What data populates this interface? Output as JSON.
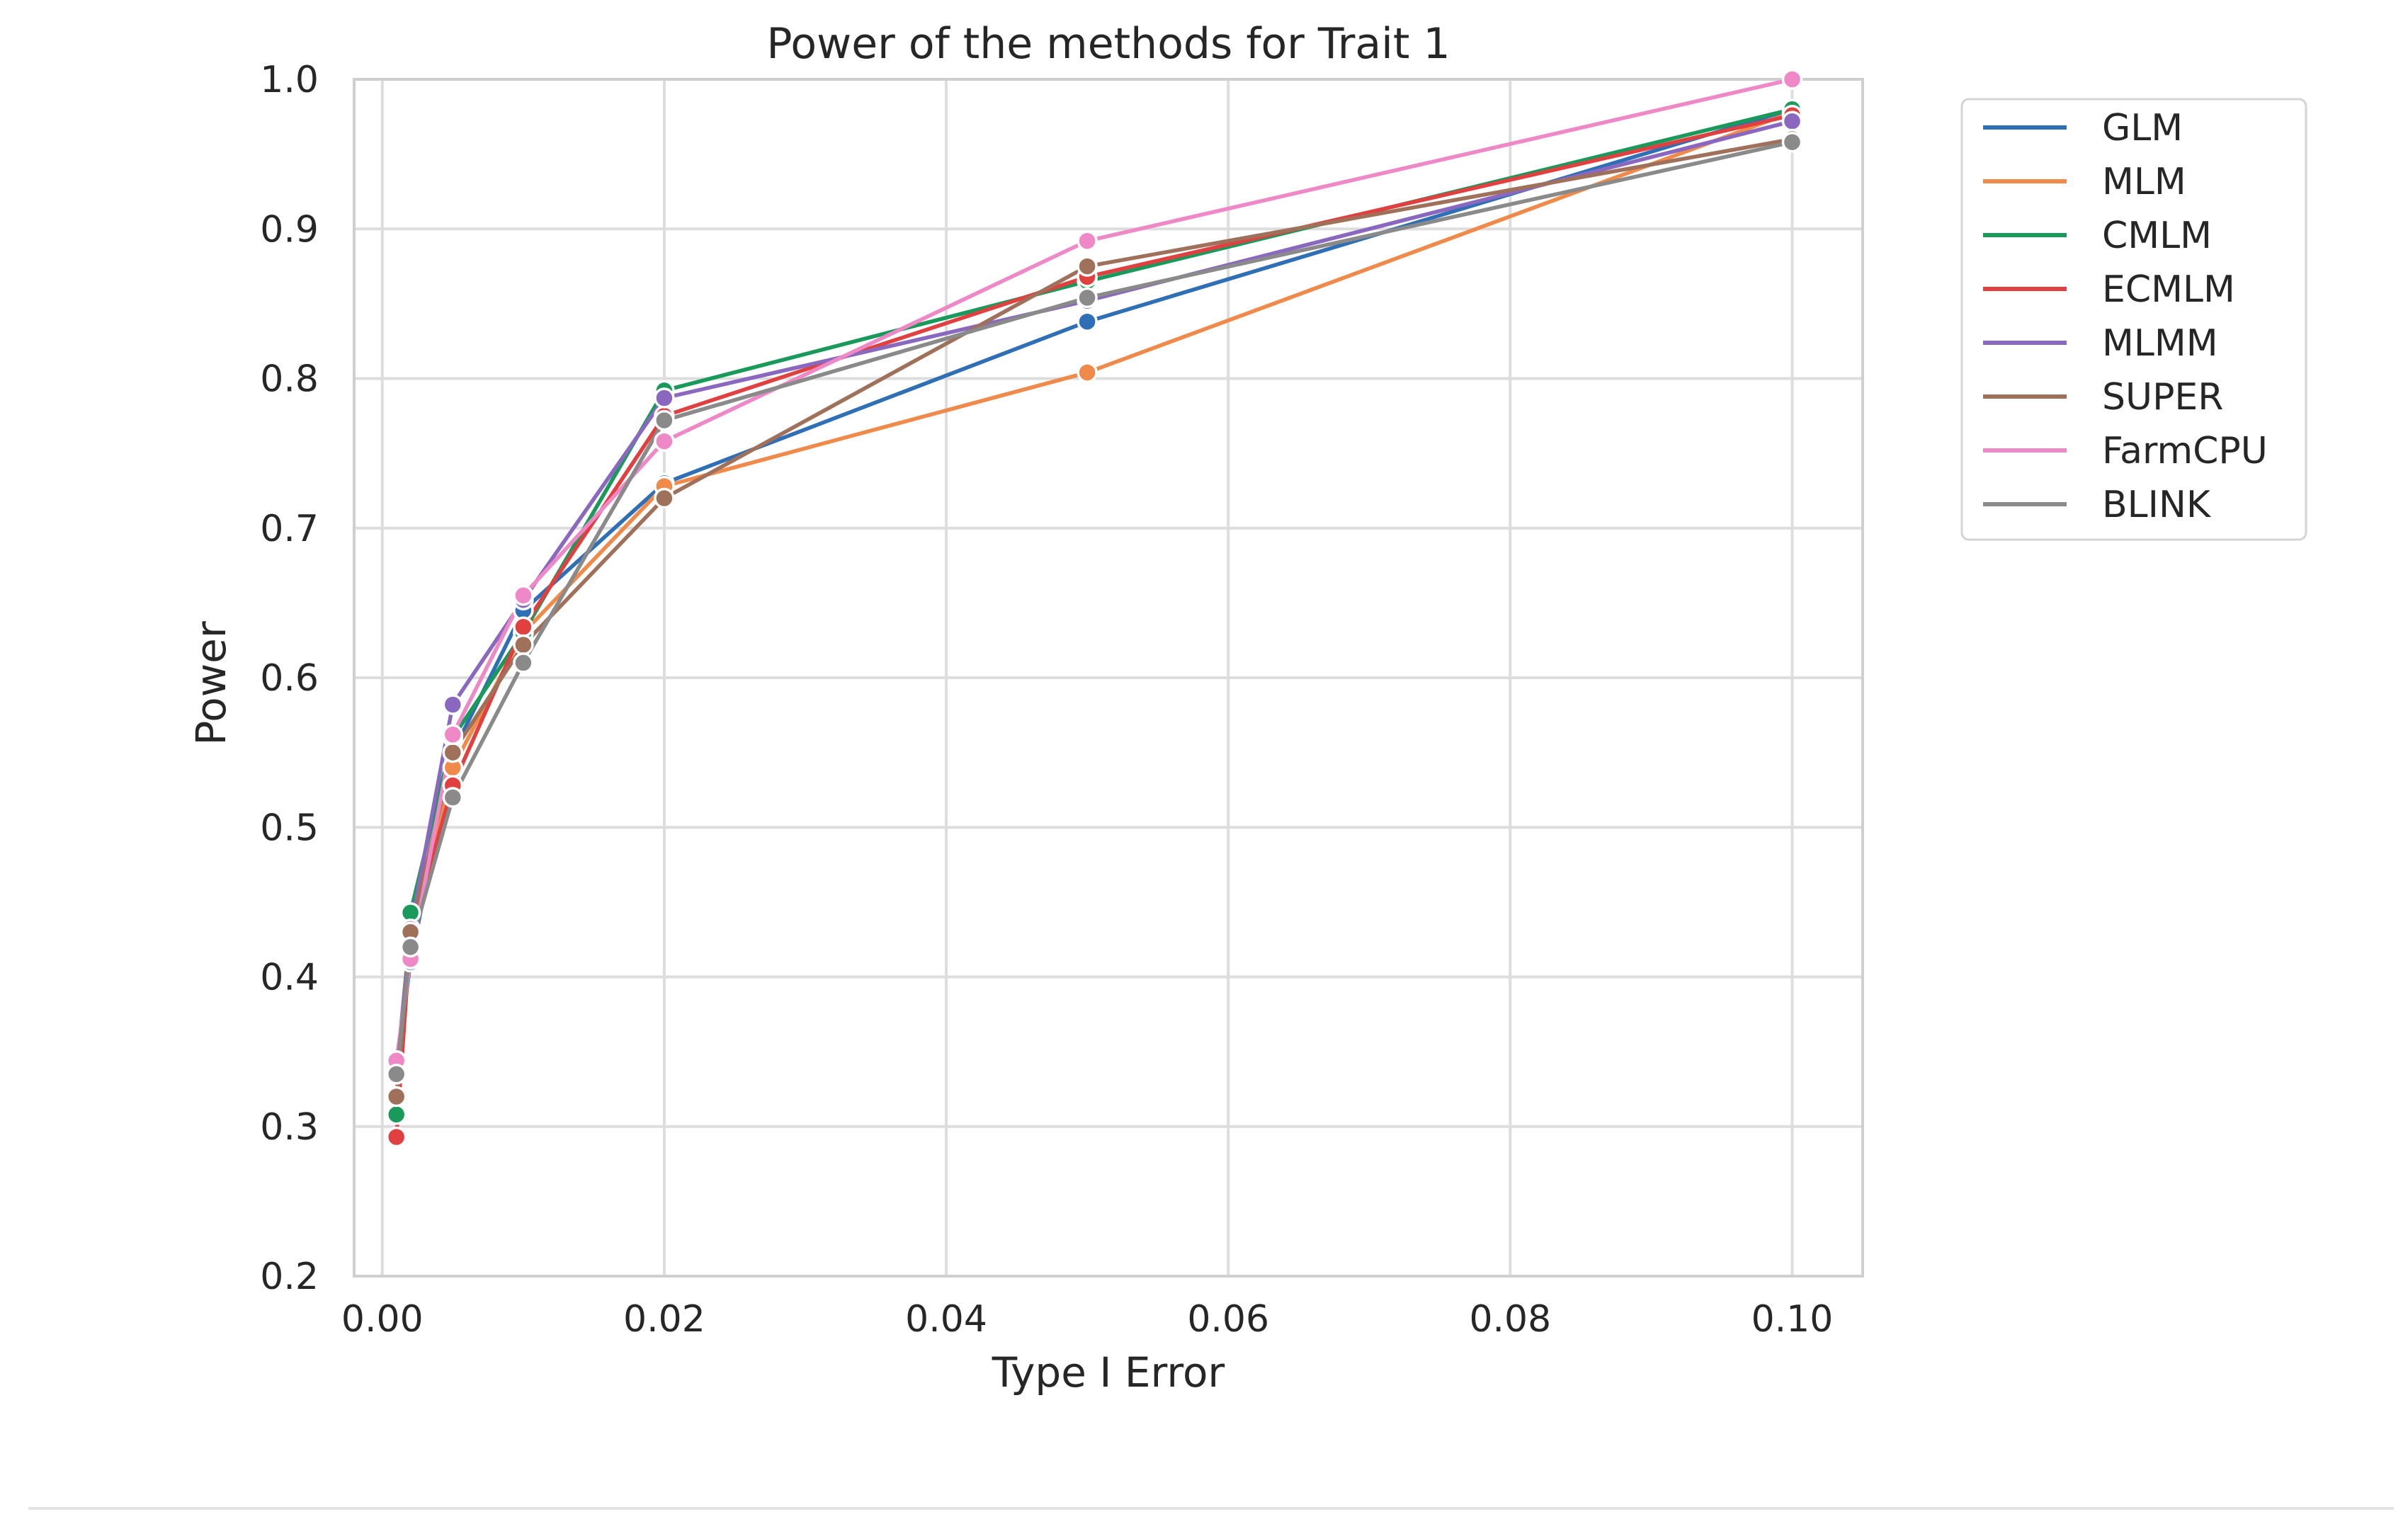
{
  "chart_data": {
    "type": "line",
    "title": "Power of the methods for Trait 1",
    "xlabel": "Type I Error",
    "ylabel": "Power",
    "xlim": [
      -0.002,
      0.105
    ],
    "ylim": [
      0.2,
      1.0
    ],
    "xticks": [
      0.0,
      0.02,
      0.04,
      0.06,
      0.08,
      0.1
    ],
    "xtick_labels": [
      "0.00",
      "0.02",
      "0.04",
      "0.06",
      "0.08",
      "0.10"
    ],
    "yticks": [
      0.2,
      0.3,
      0.4,
      0.5,
      0.6,
      0.7,
      0.8,
      0.9,
      1.0
    ],
    "ytick_labels": [
      "0.2",
      "0.3",
      "0.4",
      "0.5",
      "0.6",
      "0.7",
      "0.8",
      "0.9",
      "1.0"
    ],
    "grid": true,
    "legend_position": "outside-right-top",
    "x": [
      0.001,
      0.002,
      0.005,
      0.01,
      0.02,
      0.05,
      0.1
    ],
    "series": [
      {
        "name": "GLM",
        "color": "#2f6fb5",
        "values": [
          0.34,
          0.41,
          0.55,
          0.645,
          0.73,
          0.838,
          0.98
        ]
      },
      {
        "name": "MLM",
        "color": "#f08a4b",
        "values": [
          0.32,
          0.425,
          0.54,
          0.63,
          0.728,
          0.804,
          0.978
        ]
      },
      {
        "name": "CMLM",
        "color": "#1a9a5a",
        "values": [
          0.308,
          0.443,
          0.56,
          0.63,
          0.792,
          0.865,
          0.98
        ]
      },
      {
        "name": "ECMLM",
        "color": "#e0403f",
        "values": [
          0.293,
          0.428,
          0.528,
          0.634,
          0.775,
          0.868,
          0.976
        ]
      },
      {
        "name": "MLMM",
        "color": "#8a68bf",
        "values": [
          0.335,
          0.432,
          0.582,
          0.652,
          0.787,
          0.852,
          0.972
        ]
      },
      {
        "name": "SUPER",
        "color": "#a0715a",
        "values": [
          0.32,
          0.43,
          0.55,
          0.622,
          0.72,
          0.875,
          0.96
        ]
      },
      {
        "name": "FarmCPU",
        "color": "#ef88c6",
        "values": [
          0.344,
          0.412,
          0.562,
          0.655,
          0.758,
          0.892,
          1.0
        ]
      },
      {
        "name": "BLINK",
        "color": "#8a8a8a",
        "values": [
          0.335,
          0.42,
          0.52,
          0.61,
          0.772,
          0.854,
          0.958
        ]
      }
    ]
  }
}
